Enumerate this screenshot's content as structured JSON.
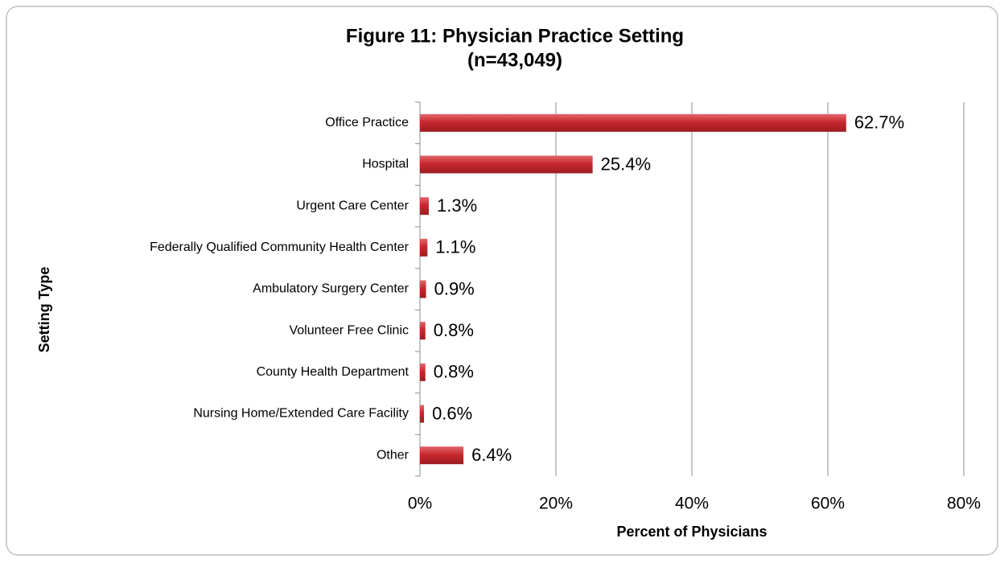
{
  "chart_data": {
    "type": "bar",
    "orientation": "horizontal",
    "title": "Figure 11: Physician Practice Setting",
    "subtitle": "(n=43,049)",
    "x_label": "Percent of Physicians",
    "y_label": "Setting Type",
    "categories": [
      "Office Practice",
      "Hospital",
      "Urgent Care Center",
      "Federally Qualified Community Health Center",
      "Ambulatory Surgery Center",
      "Volunteer Free Clinic",
      "County Health Department",
      "Nursing Home/Extended Care Facility",
      "Other"
    ],
    "values": [
      62.7,
      25.4,
      1.3,
      1.1,
      0.9,
      0.8,
      0.8,
      0.6,
      6.4
    ],
    "value_labels": [
      "62.7%",
      "25.4%",
      "1.3%",
      "1.1%",
      "0.9%",
      "0.8%",
      "0.8%",
      "0.6%",
      "6.4%"
    ],
    "color": "#c8282e",
    "xlim": [
      0,
      80
    ],
    "xticks": [
      {
        "value": 0,
        "label": "0%"
      },
      {
        "value": 20,
        "label": "20%"
      },
      {
        "value": 40,
        "label": "40%"
      },
      {
        "value": 60,
        "label": "60%"
      },
      {
        "value": 80,
        "label": "80%"
      }
    ],
    "grid": true
  }
}
